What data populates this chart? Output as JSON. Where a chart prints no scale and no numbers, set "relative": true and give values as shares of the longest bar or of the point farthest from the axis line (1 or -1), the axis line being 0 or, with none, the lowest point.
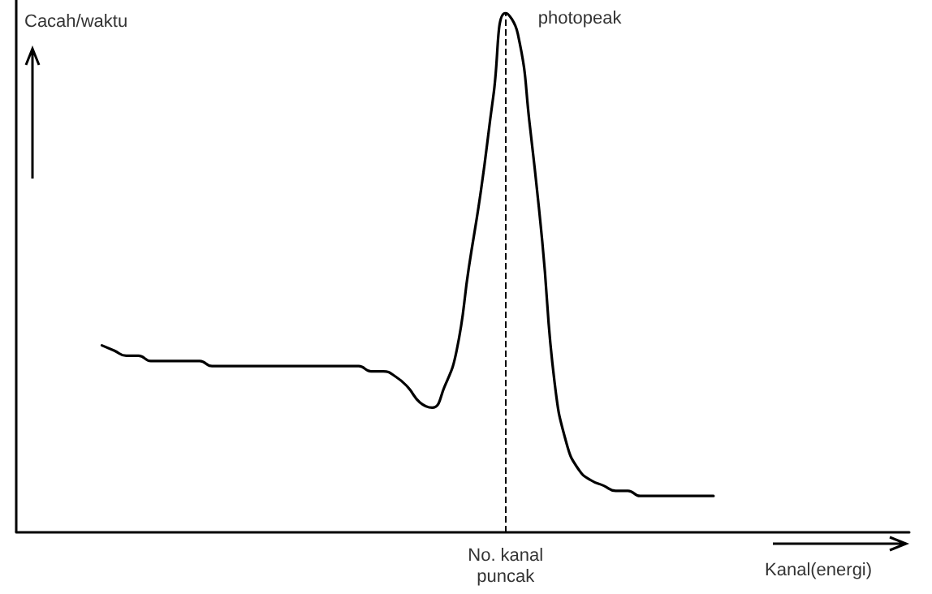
{
  "chart_data": {
    "type": "line",
    "relative": true,
    "xlabel": "Kanal(energi)",
    "ylabel": "Cacah/waktu",
    "categories": [
      null,
      null,
      null,
      null,
      null,
      null,
      null,
      null,
      null,
      null,
      null,
      null,
      null,
      null,
      null,
      null,
      null,
      null,
      null,
      null,
      null,
      null,
      null,
      null,
      null,
      null,
      null,
      null,
      null,
      null,
      null,
      null,
      null,
      null,
      null,
      null,
      null,
      null,
      null,
      null,
      null,
      null,
      null,
      null,
      null,
      null,
      null,
      null,
      null,
      null,
      null,
      null,
      null,
      null,
      null,
      null,
      null,
      null,
      null,
      null,
      null,
      null,
      null,
      null,
      null,
      null,
      null,
      null,
      null,
      null,
      null,
      null,
      null,
      null
    ],
    "series": [
      {
        "color": "#000000",
        "values": [
          null,
          null,
          null,
          null,
          null,
          null,
          null,
          0.36,
          0.35,
          0.34,
          0.34,
          0.33,
          0.33,
          0.33,
          0.33,
          0.33,
          0.32,
          0.32,
          0.32,
          0.32,
          0.32,
          0.32,
          0.32,
          0.32,
          0.32,
          0.32,
          0.32,
          0.32,
          0.32,
          0.31,
          0.31,
          0.3,
          0.28,
          0.25,
          0.24,
          0.28,
          0.35,
          0.51,
          0.66,
          0.84,
          1,
          0.96,
          0.78,
          0.56,
          0.29,
          0.17,
          0.12,
          0.1,
          0.09,
          0.08,
          0.08,
          0.07,
          0.07,
          0.07,
          0.07,
          0.07,
          0.07,
          0.07,
          null,
          null,
          null,
          null,
          null,
          null,
          null,
          null,
          null,
          null,
          null,
          null,
          null,
          null,
          null,
          null
        ]
      }
    ],
    "annotations": [
      "photopeak",
      "No. kanal puncak"
    ],
    "line_style": "solid"
  }
}
